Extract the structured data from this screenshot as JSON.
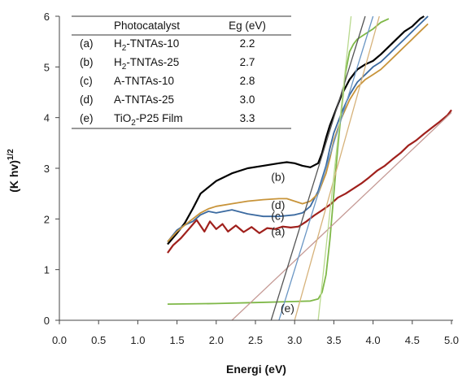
{
  "chart_data": {
    "type": "line",
    "title": "",
    "xlabel": "Energi (eV)",
    "ylabel": "(Khv)1/2",
    "ylabel_base": "(K hv)",
    "ylabel_sup": "1/2",
    "xlim": [
      0,
      5
    ],
    "ylim": [
      0,
      6
    ],
    "x_ticks": [
      "0.0",
      "0.5",
      "1.0",
      "1.5",
      "2.0",
      "2.5",
      "3.0",
      "3.5",
      "4.0",
      "4.5",
      "5.0"
    ],
    "y_ticks": [
      "0",
      "1",
      "2",
      "3",
      "4",
      "5",
      "6"
    ],
    "grid": false,
    "legend_table": {
      "headers": [
        "Photocatalyst",
        "Eg (eV)"
      ],
      "rows": [
        {
          "id": "(a)",
          "name_parts": [
            "H",
            "2",
            "-TNTAs-10"
          ],
          "eg": "2.2"
        },
        {
          "id": "(b)",
          "name_parts": [
            "H",
            "2",
            "-TNTAs-25"
          ],
          "eg": "2.7"
        },
        {
          "id": "(c)",
          "name_parts": [
            "A-TNTAs-10",
            "",
            ""
          ],
          "eg": "2.8"
        },
        {
          "id": "(d)",
          "name_parts": [
            "A-TNTAs-25",
            "",
            ""
          ],
          "eg": "3.0"
        },
        {
          "id": "(e)",
          "name_parts": [
            "TiO",
            "2",
            "-P25 Film"
          ],
          "eg": "3.3"
        }
      ]
    },
    "series": [
      {
        "label": "(a)",
        "color": "#a0201c",
        "x": [
          1.38,
          1.45,
          1.55,
          1.65,
          1.75,
          1.85,
          1.92,
          2.0,
          2.08,
          2.15,
          2.25,
          2.35,
          2.45,
          2.55,
          2.65,
          2.75,
          2.85,
          2.95,
          3.05,
          3.15,
          3.25,
          3.35,
          3.45,
          3.55,
          3.65,
          3.75,
          3.85,
          3.95,
          4.05,
          4.15,
          4.25,
          4.35,
          4.45,
          4.55,
          4.65,
          4.75,
          4.85,
          4.95,
          5.0
        ],
        "y": [
          1.33,
          1.48,
          1.62,
          1.8,
          1.98,
          1.75,
          1.95,
          1.8,
          1.9,
          1.75,
          1.87,
          1.74,
          1.84,
          1.72,
          1.82,
          1.8,
          1.85,
          1.83,
          1.85,
          1.95,
          2.07,
          2.17,
          2.28,
          2.42,
          2.5,
          2.6,
          2.7,
          2.82,
          2.95,
          3.05,
          3.18,
          3.3,
          3.45,
          3.55,
          3.68,
          3.8,
          3.92,
          4.05,
          4.15
        ]
      },
      {
        "label": "(b)",
        "color": "#000000",
        "x": [
          1.38,
          1.5,
          1.6,
          1.7,
          1.8,
          2.0,
          2.2,
          2.4,
          2.6,
          2.8,
          2.9,
          3.0,
          3.1,
          3.2,
          3.3,
          3.35,
          3.4,
          3.45,
          3.5,
          3.55,
          3.6,
          3.7,
          3.8,
          3.9,
          4.0,
          4.1,
          4.2,
          4.3,
          4.4,
          4.5,
          4.6,
          4.65
        ],
        "y": [
          1.5,
          1.72,
          1.92,
          2.2,
          2.5,
          2.75,
          2.9,
          3.0,
          3.05,
          3.1,
          3.12,
          3.1,
          3.05,
          3.02,
          3.1,
          3.3,
          3.6,
          3.85,
          4.05,
          4.25,
          4.45,
          4.75,
          4.95,
          5.05,
          5.12,
          5.25,
          5.4,
          5.55,
          5.7,
          5.8,
          5.95,
          6.0
        ]
      },
      {
        "label": "(c)",
        "color": "#3b6aa0",
        "x": [
          1.38,
          1.5,
          1.6,
          1.7,
          1.8,
          1.9,
          2.0,
          2.2,
          2.4,
          2.6,
          2.8,
          3.0,
          3.1,
          3.2,
          3.3,
          3.4,
          3.45,
          3.5,
          3.6,
          3.7,
          3.8,
          3.9,
          4.0,
          4.1,
          4.2,
          4.3,
          4.4,
          4.5,
          4.6,
          4.7
        ],
        "y": [
          1.55,
          1.78,
          1.88,
          1.95,
          2.08,
          2.15,
          2.12,
          2.18,
          2.1,
          2.05,
          2.05,
          2.08,
          2.12,
          2.25,
          2.55,
          3.05,
          3.4,
          3.7,
          4.1,
          4.45,
          4.7,
          4.85,
          5.0,
          5.1,
          5.25,
          5.4,
          5.55,
          5.7,
          5.85,
          6.0
        ]
      },
      {
        "label": "(d)",
        "color": "#c8943a",
        "x": [
          1.38,
          1.5,
          1.6,
          1.7,
          1.8,
          1.9,
          2.0,
          2.2,
          2.4,
          2.6,
          2.8,
          2.9,
          3.0,
          3.1,
          3.2,
          3.3,
          3.4,
          3.45,
          3.5,
          3.6,
          3.7,
          3.8,
          3.9,
          4.0,
          4.1,
          4.2,
          4.3,
          4.4,
          4.5,
          4.6,
          4.7
        ],
        "y": [
          1.55,
          1.75,
          1.88,
          2.0,
          2.12,
          2.2,
          2.25,
          2.3,
          2.35,
          2.38,
          2.4,
          2.4,
          2.35,
          2.3,
          2.35,
          2.5,
          2.9,
          3.2,
          3.55,
          4.0,
          4.35,
          4.6,
          4.75,
          4.85,
          4.95,
          5.1,
          5.25,
          5.4,
          5.55,
          5.7,
          5.85
        ]
      },
      {
        "label": "(e)",
        "color": "#7fb848",
        "x": [
          1.38,
          2.0,
          2.5,
          3.0,
          3.2,
          3.3,
          3.35,
          3.4,
          3.45,
          3.5,
          3.55,
          3.6,
          3.65,
          3.7,
          3.75,
          3.8,
          3.9,
          4.0,
          4.1,
          4.2
        ],
        "y": [
          0.32,
          0.33,
          0.35,
          0.37,
          0.38,
          0.42,
          0.55,
          0.9,
          1.6,
          2.5,
          3.4,
          4.2,
          4.9,
          5.3,
          5.45,
          5.55,
          5.65,
          5.75,
          5.88,
          5.95
        ]
      }
    ],
    "tangents": [
      {
        "label": "(a)",
        "color": "#c59a95",
        "x": [
          2.2,
          5.0
        ],
        "y": [
          0.0,
          4.1
        ]
      },
      {
        "label": "(b)",
        "color": "#555555",
        "x": [
          2.7,
          3.9
        ],
        "y": [
          0.0,
          6.0
        ]
      },
      {
        "label": "(c)",
        "color": "#6a96c4",
        "x": [
          2.8,
          4.0
        ],
        "y": [
          0.0,
          6.0
        ]
      },
      {
        "label": "(d)",
        "color": "#d6b27a",
        "x": [
          3.0,
          4.08
        ],
        "y": [
          0.0,
          6.0
        ]
      },
      {
        "label": "(e)",
        "color": "#b9d98f",
        "x": [
          3.3,
          3.72
        ],
        "y": [
          0.0,
          6.0
        ]
      }
    ],
    "curve_labels": [
      {
        "text": "(b)",
        "x": 2.7,
        "y": 2.75
      },
      {
        "text": "(d)",
        "x": 2.7,
        "y": 2.2
      },
      {
        "text": "(c)",
        "x": 2.7,
        "y": 1.98
      },
      {
        "text": "(a)",
        "x": 2.7,
        "y": 1.68
      },
      {
        "text": "(e)",
        "x": 2.82,
        "y": 0.16
      }
    ]
  }
}
